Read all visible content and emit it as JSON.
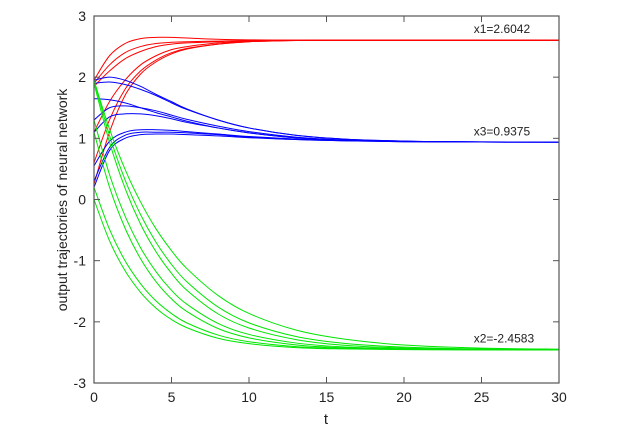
{
  "chart_data": {
    "type": "line",
    "title": "",
    "xlabel": "t",
    "ylabel": "output trajectories of neural network",
    "xlim": [
      0,
      30
    ],
    "ylim": [
      -3,
      3
    ],
    "xticks": [
      0,
      5,
      10,
      15,
      20,
      25,
      30
    ],
    "yticks": [
      -3,
      -2,
      -1,
      0,
      1,
      2,
      3
    ],
    "grid": false,
    "annotations": [
      {
        "text": "x1=2.6042",
        "x": 24.5,
        "y": 2.72
      },
      {
        "text": "x3=0.9375",
        "x": 24.5,
        "y": 1.05
      },
      {
        "text": "x2=-2.4583",
        "x": 24.5,
        "y": -2.34
      }
    ],
    "colors": {
      "x1": "#ff0000",
      "x2": "#00e600",
      "x3": "#0000ff"
    },
    "t": [
      0,
      1,
      2,
      3,
      4,
      5,
      6,
      8,
      10,
      13,
      16,
      20,
      25,
      30
    ],
    "groups": [
      {
        "state": "x1",
        "color": "#ff0000",
        "trajectories": [
          [
            1.95,
            2.35,
            2.55,
            2.63,
            2.65,
            2.65,
            2.64,
            2.62,
            2.61,
            2.605,
            2.604,
            2.604,
            2.604,
            2.604
          ],
          [
            1.9,
            2.2,
            2.4,
            2.5,
            2.55,
            2.57,
            2.58,
            2.59,
            2.6,
            2.604,
            2.604,
            2.604,
            2.604,
            2.604
          ],
          [
            1.85,
            2.1,
            2.3,
            2.42,
            2.5,
            2.54,
            2.56,
            2.58,
            2.6,
            2.603,
            2.604,
            2.604,
            2.604,
            2.604
          ],
          [
            1.1,
            1.6,
            1.95,
            2.2,
            2.35,
            2.45,
            2.5,
            2.56,
            2.59,
            2.6,
            2.604,
            2.604,
            2.604,
            2.604
          ],
          [
            0.6,
            1.3,
            1.8,
            2.1,
            2.28,
            2.4,
            2.47,
            2.54,
            2.58,
            2.6,
            2.603,
            2.604,
            2.604,
            2.604
          ],
          [
            0.25,
            1.1,
            1.7,
            2.05,
            2.25,
            2.38,
            2.46,
            2.54,
            2.58,
            2.6,
            2.603,
            2.604,
            2.604,
            2.604
          ]
        ]
      },
      {
        "state": "x3",
        "color": "#0000ff",
        "trajectories": [
          [
            1.95,
            2.0,
            1.95,
            1.85,
            1.72,
            1.6,
            1.48,
            1.3,
            1.17,
            1.05,
            0.99,
            0.955,
            0.942,
            0.939
          ],
          [
            1.9,
            1.92,
            1.88,
            1.8,
            1.7,
            1.58,
            1.47,
            1.3,
            1.17,
            1.05,
            0.99,
            0.955,
            0.942,
            0.939
          ],
          [
            1.65,
            1.63,
            1.58,
            1.5,
            1.42,
            1.35,
            1.28,
            1.17,
            1.09,
            1.01,
            0.97,
            0.95,
            0.94,
            0.938
          ],
          [
            1.3,
            1.5,
            1.53,
            1.5,
            1.45,
            1.38,
            1.31,
            1.2,
            1.11,
            1.02,
            0.975,
            0.95,
            0.94,
            0.938
          ],
          [
            1.1,
            1.35,
            1.4,
            1.4,
            1.37,
            1.32,
            1.26,
            1.17,
            1.09,
            1.01,
            0.97,
            0.95,
            0.94,
            0.938
          ],
          [
            0.55,
            0.95,
            1.1,
            1.14,
            1.14,
            1.13,
            1.11,
            1.07,
            1.03,
            0.99,
            0.965,
            0.948,
            0.94,
            0.938
          ],
          [
            0.3,
            0.85,
            1.05,
            1.1,
            1.1,
            1.1,
            1.09,
            1.06,
            1.02,
            0.98,
            0.96,
            0.945,
            0.94,
            0.938
          ],
          [
            0.2,
            0.8,
            1.0,
            1.06,
            1.07,
            1.07,
            1.06,
            1.04,
            1.01,
            0.98,
            0.96,
            0.945,
            0.94,
            0.938
          ]
        ]
      },
      {
        "state": "x2",
        "color": "#00e600",
        "trajectories": [
          [
            1.95,
            1.046,
            0.324,
            -0.245,
            -0.699,
            -1.061,
            -1.347,
            -1.757,
            -2.017,
            -2.238,
            -2.348,
            -2.414,
            -2.445,
            -2.454
          ],
          [
            1.95,
            1.152,
            0.495,
            -0.038,
            -0.479,
            -0.836,
            -1.131,
            -1.568,
            -1.863,
            -2.132,
            -2.277,
            -2.379,
            -2.429,
            -2.447
          ],
          [
            1.9,
            0.937,
            0.187,
            -0.401,
            -0.854,
            -1.207,
            -1.486,
            -1.87,
            -2.101,
            -2.288,
            -2.38,
            -2.429,
            -2.45,
            -2.456
          ],
          [
            1.3,
            0.409,
            -0.267,
            -0.786,
            -1.18,
            -1.485,
            -1.714,
            -2.026,
            -2.206,
            -2.345,
            -2.409,
            -2.441,
            -2.454,
            -2.457
          ],
          [
            1.1,
            0.203,
            -0.466,
            -0.967,
            -1.344,
            -1.625,
            -1.832,
            -2.109,
            -2.262,
            -2.376,
            -2.424,
            -2.448,
            -2.456,
            -2.458
          ],
          [
            0.2,
            -0.488,
            -0.999,
            -1.376,
            -1.658,
            -1.865,
            -2.019,
            -2.216,
            -2.325,
            -2.405,
            -2.436,
            -2.452,
            -2.457,
            -2.458
          ],
          [
            0.0,
            -0.674,
            -1.163,
            -1.517,
            -1.775,
            -1.962,
            -2.097,
            -2.269,
            -2.357,
            -2.421,
            -2.443,
            -2.454,
            -2.458,
            -2.458
          ]
        ]
      }
    ]
  }
}
